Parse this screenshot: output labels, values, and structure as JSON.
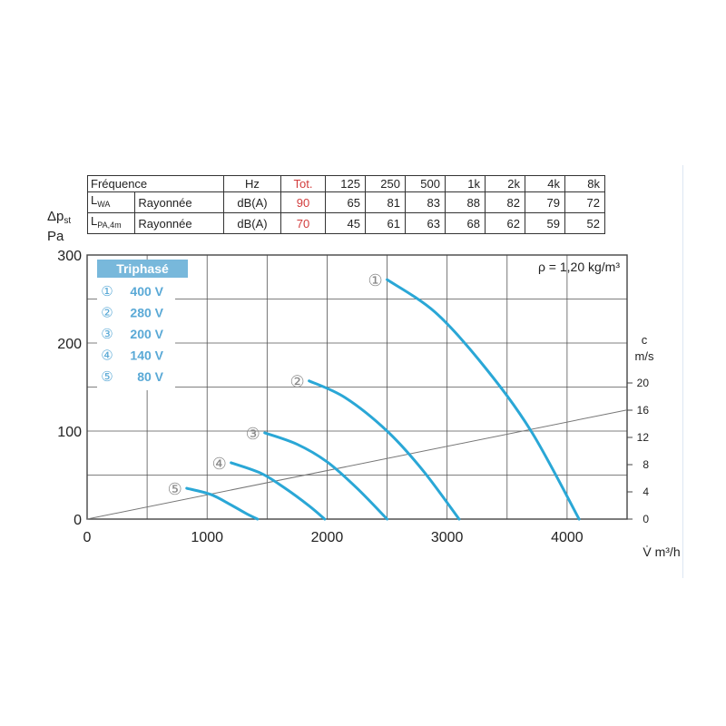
{
  "table": {
    "header": [
      "Fréquence",
      "Hz",
      "Tot.",
      "125",
      "250",
      "500",
      "1k",
      "2k",
      "4k",
      "8k"
    ],
    "rows": [
      {
        "label_main": "L",
        "label_sub": "WA",
        "type": "Rayonnée",
        "unit": "dB(A)",
        "tot": "90",
        "values": [
          "65",
          "81",
          "83",
          "88",
          "82",
          "79",
          "72"
        ]
      },
      {
        "label_main": "L",
        "label_sub": "PA,4m",
        "type": "Rayonnée",
        "unit": "dB(A)",
        "tot": "70",
        "values": [
          "45",
          "61",
          "63",
          "68",
          "62",
          "59",
          "52"
        ]
      }
    ]
  },
  "chart_data": {
    "type": "line",
    "ylabel_top": "Δp",
    "ylabel_sub": "st",
    "ylabel_unit": "Pa",
    "xlabel": "V̇ m³/h",
    "xlim": [
      0,
      4500
    ],
    "ylim": [
      0,
      300
    ],
    "x_ticks": [
      "0",
      "1000",
      "2000",
      "3000",
      "4000"
    ],
    "y_ticks": [
      "0",
      "100",
      "200",
      "300"
    ],
    "grid": true,
    "density_note": "ρ = 1,20 kg/m³",
    "legend_title": "Triphasé",
    "series": [
      {
        "name": "400 V",
        "marker": "①",
        "points": [
          [
            2500,
            272
          ],
          [
            2900,
            235
          ],
          [
            3300,
            175
          ],
          [
            3700,
            100
          ],
          [
            4100,
            0
          ]
        ]
      },
      {
        "name": "280 V",
        "marker": "②",
        "points": [
          [
            1850,
            157
          ],
          [
            2150,
            138
          ],
          [
            2500,
            100
          ],
          [
            2800,
            55
          ],
          [
            3100,
            0
          ]
        ]
      },
      {
        "name": "200 V",
        "marker": "③",
        "points": [
          [
            1480,
            98
          ],
          [
            1750,
            85
          ],
          [
            2000,
            65
          ],
          [
            2250,
            35
          ],
          [
            2500,
            0
          ]
        ]
      },
      {
        "name": "140 V",
        "marker": "④",
        "points": [
          [
            1200,
            64
          ],
          [
            1450,
            52
          ],
          [
            1650,
            35
          ],
          [
            1850,
            15
          ],
          [
            1980,
            0
          ]
        ]
      },
      {
        "name": "80 V",
        "marker": "⑤",
        "points": [
          [
            830,
            35
          ],
          [
            1030,
            28
          ],
          [
            1200,
            16
          ],
          [
            1330,
            6
          ],
          [
            1420,
            0
          ]
        ]
      }
    ],
    "velocity_axis": {
      "title": "c",
      "unit": "m/s",
      "ticks": [
        "0",
        "4",
        "8",
        "12",
        "16",
        "20"
      ],
      "line_from": [
        0,
        0
      ],
      "line_to": [
        4500,
        124
      ]
    },
    "colors": {
      "curve": "#2aa7d6",
      "legend_header": "#78b8db",
      "legend_text": "#5aa9d6",
      "grid": "#555555"
    }
  }
}
